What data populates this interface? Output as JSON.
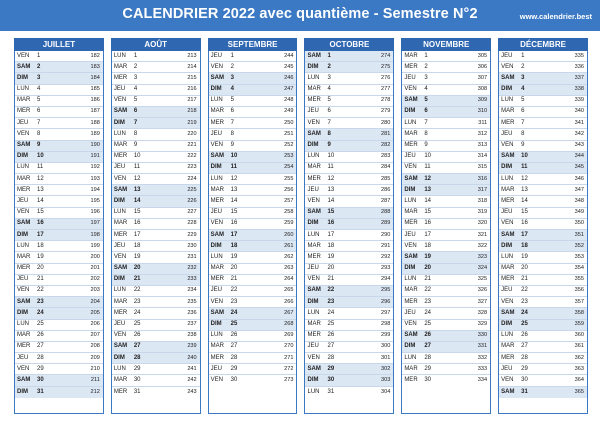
{
  "header": {
    "title": "CALENDRIER 2022 avec quantième - Semestre N°2",
    "site": "www.calendrier.best"
  },
  "months": [
    {
      "name": "JUILLET",
      "days": [
        {
          "d": "VEN",
          "n": "1",
          "q": "182"
        },
        {
          "d": "SAM",
          "n": "2",
          "q": "183"
        },
        {
          "d": "DIM",
          "n": "3",
          "q": "184"
        },
        {
          "d": "LUN",
          "n": "4",
          "q": "185"
        },
        {
          "d": "MAR",
          "n": "5",
          "q": "186"
        },
        {
          "d": "MER",
          "n": "6",
          "q": "187"
        },
        {
          "d": "JEU",
          "n": "7",
          "q": "188"
        },
        {
          "d": "VEN",
          "n": "8",
          "q": "189"
        },
        {
          "d": "SAM",
          "n": "9",
          "q": "190"
        },
        {
          "d": "DIM",
          "n": "10",
          "q": "191"
        },
        {
          "d": "LUN",
          "n": "11",
          "q": "192"
        },
        {
          "d": "MAR",
          "n": "12",
          "q": "193"
        },
        {
          "d": "MER",
          "n": "13",
          "q": "194"
        },
        {
          "d": "JEU",
          "n": "14",
          "q": "195"
        },
        {
          "d": "VEN",
          "n": "15",
          "q": "196"
        },
        {
          "d": "SAM",
          "n": "16",
          "q": "197"
        },
        {
          "d": "DIM",
          "n": "17",
          "q": "198"
        },
        {
          "d": "LUN",
          "n": "18",
          "q": "199"
        },
        {
          "d": "MAR",
          "n": "19",
          "q": "200"
        },
        {
          "d": "MER",
          "n": "20",
          "q": "201"
        },
        {
          "d": "JEU",
          "n": "21",
          "q": "202"
        },
        {
          "d": "VEN",
          "n": "22",
          "q": "203"
        },
        {
          "d": "SAM",
          "n": "23",
          "q": "204"
        },
        {
          "d": "DIM",
          "n": "24",
          "q": "205"
        },
        {
          "d": "LUN",
          "n": "25",
          "q": "206"
        },
        {
          "d": "MAR",
          "n": "26",
          "q": "207"
        },
        {
          "d": "MER",
          "n": "27",
          "q": "208"
        },
        {
          "d": "JEU",
          "n": "28",
          "q": "209"
        },
        {
          "d": "VEN",
          "n": "29",
          "q": "210"
        },
        {
          "d": "SAM",
          "n": "30",
          "q": "211"
        },
        {
          "d": "DIM",
          "n": "31",
          "q": "212"
        }
      ]
    },
    {
      "name": "AOÛT",
      "days": [
        {
          "d": "LUN",
          "n": "1",
          "q": "213"
        },
        {
          "d": "MAR",
          "n": "2",
          "q": "214"
        },
        {
          "d": "MER",
          "n": "3",
          "q": "215"
        },
        {
          "d": "JEU",
          "n": "4",
          "q": "216"
        },
        {
          "d": "VEN",
          "n": "5",
          "q": "217"
        },
        {
          "d": "SAM",
          "n": "6",
          "q": "218"
        },
        {
          "d": "DIM",
          "n": "7",
          "q": "219"
        },
        {
          "d": "LUN",
          "n": "8",
          "q": "220"
        },
        {
          "d": "MAR",
          "n": "9",
          "q": "221"
        },
        {
          "d": "MER",
          "n": "10",
          "q": "222"
        },
        {
          "d": "JEU",
          "n": "11",
          "q": "223"
        },
        {
          "d": "VEN",
          "n": "12",
          "q": "224"
        },
        {
          "d": "SAM",
          "n": "13",
          "q": "225"
        },
        {
          "d": "DIM",
          "n": "14",
          "q": "226"
        },
        {
          "d": "LUN",
          "n": "15",
          "q": "227"
        },
        {
          "d": "MAR",
          "n": "16",
          "q": "228"
        },
        {
          "d": "MER",
          "n": "17",
          "q": "229"
        },
        {
          "d": "JEU",
          "n": "18",
          "q": "230"
        },
        {
          "d": "VEN",
          "n": "19",
          "q": "231"
        },
        {
          "d": "SAM",
          "n": "20",
          "q": "232"
        },
        {
          "d": "DIM",
          "n": "21",
          "q": "233"
        },
        {
          "d": "LUN",
          "n": "22",
          "q": "234"
        },
        {
          "d": "MAR",
          "n": "23",
          "q": "235"
        },
        {
          "d": "MER",
          "n": "24",
          "q": "236"
        },
        {
          "d": "JEU",
          "n": "25",
          "q": "237"
        },
        {
          "d": "VEN",
          "n": "26",
          "q": "238"
        },
        {
          "d": "SAM",
          "n": "27",
          "q": "239"
        },
        {
          "d": "DIM",
          "n": "28",
          "q": "240"
        },
        {
          "d": "LUN",
          "n": "29",
          "q": "241"
        },
        {
          "d": "MAR",
          "n": "30",
          "q": "242"
        },
        {
          "d": "MER",
          "n": "31",
          "q": "243"
        }
      ]
    },
    {
      "name": "SEPTEMBRE",
      "days": [
        {
          "d": "JEU",
          "n": "1",
          "q": "244"
        },
        {
          "d": "VEN",
          "n": "2",
          "q": "245"
        },
        {
          "d": "SAM",
          "n": "3",
          "q": "246"
        },
        {
          "d": "DIM",
          "n": "4",
          "q": "247"
        },
        {
          "d": "LUN",
          "n": "5",
          "q": "248"
        },
        {
          "d": "MAR",
          "n": "6",
          "q": "249"
        },
        {
          "d": "MER",
          "n": "7",
          "q": "250"
        },
        {
          "d": "JEU",
          "n": "8",
          "q": "251"
        },
        {
          "d": "VEN",
          "n": "9",
          "q": "252"
        },
        {
          "d": "SAM",
          "n": "10",
          "q": "253"
        },
        {
          "d": "DIM",
          "n": "11",
          "q": "254"
        },
        {
          "d": "LUN",
          "n": "12",
          "q": "255"
        },
        {
          "d": "MAR",
          "n": "13",
          "q": "256"
        },
        {
          "d": "MER",
          "n": "14",
          "q": "257"
        },
        {
          "d": "JEU",
          "n": "15",
          "q": "258"
        },
        {
          "d": "VEN",
          "n": "16",
          "q": "259"
        },
        {
          "d": "SAM",
          "n": "17",
          "q": "260"
        },
        {
          "d": "DIM",
          "n": "18",
          "q": "261"
        },
        {
          "d": "LUN",
          "n": "19",
          "q": "262"
        },
        {
          "d": "MAR",
          "n": "20",
          "q": "263"
        },
        {
          "d": "MER",
          "n": "21",
          "q": "264"
        },
        {
          "d": "JEU",
          "n": "22",
          "q": "265"
        },
        {
          "d": "VEN",
          "n": "23",
          "q": "266"
        },
        {
          "d": "SAM",
          "n": "24",
          "q": "267"
        },
        {
          "d": "DIM",
          "n": "25",
          "q": "268"
        },
        {
          "d": "LUN",
          "n": "26",
          "q": "269"
        },
        {
          "d": "MAR",
          "n": "27",
          "q": "270"
        },
        {
          "d": "MER",
          "n": "28",
          "q": "271"
        },
        {
          "d": "JEU",
          "n": "29",
          "q": "272"
        },
        {
          "d": "VEN",
          "n": "30",
          "q": "273"
        }
      ]
    },
    {
      "name": "OCTOBRE",
      "days": [
        {
          "d": "SAM",
          "n": "1",
          "q": "274"
        },
        {
          "d": "DIM",
          "n": "2",
          "q": "275"
        },
        {
          "d": "LUN",
          "n": "3",
          "q": "276"
        },
        {
          "d": "MAR",
          "n": "4",
          "q": "277"
        },
        {
          "d": "MER",
          "n": "5",
          "q": "278"
        },
        {
          "d": "JEU",
          "n": "6",
          "q": "279"
        },
        {
          "d": "VEN",
          "n": "7",
          "q": "280"
        },
        {
          "d": "SAM",
          "n": "8",
          "q": "281"
        },
        {
          "d": "DIM",
          "n": "9",
          "q": "282"
        },
        {
          "d": "LUN",
          "n": "10",
          "q": "283"
        },
        {
          "d": "MAR",
          "n": "11",
          "q": "284"
        },
        {
          "d": "MER",
          "n": "12",
          "q": "285"
        },
        {
          "d": "JEU",
          "n": "13",
          "q": "286"
        },
        {
          "d": "VEN",
          "n": "14",
          "q": "287"
        },
        {
          "d": "SAM",
          "n": "15",
          "q": "288"
        },
        {
          "d": "DIM",
          "n": "16",
          "q": "289"
        },
        {
          "d": "LUN",
          "n": "17",
          "q": "290"
        },
        {
          "d": "MAR",
          "n": "18",
          "q": "291"
        },
        {
          "d": "MER",
          "n": "19",
          "q": "292"
        },
        {
          "d": "JEU",
          "n": "20",
          "q": "293"
        },
        {
          "d": "VEN",
          "n": "21",
          "q": "294"
        },
        {
          "d": "SAM",
          "n": "22",
          "q": "295"
        },
        {
          "d": "DIM",
          "n": "23",
          "q": "296"
        },
        {
          "d": "LUN",
          "n": "24",
          "q": "297"
        },
        {
          "d": "MAR",
          "n": "25",
          "q": "298"
        },
        {
          "d": "MER",
          "n": "26",
          "q": "299"
        },
        {
          "d": "JEU",
          "n": "27",
          "q": "300"
        },
        {
          "d": "VEN",
          "n": "28",
          "q": "301"
        },
        {
          "d": "SAM",
          "n": "29",
          "q": "302"
        },
        {
          "d": "DIM",
          "n": "30",
          "q": "303"
        },
        {
          "d": "LUN",
          "n": "31",
          "q": "304"
        }
      ]
    },
    {
      "name": "NOVEMBRE",
      "days": [
        {
          "d": "MAR",
          "n": "1",
          "q": "305"
        },
        {
          "d": "MER",
          "n": "2",
          "q": "306"
        },
        {
          "d": "JEU",
          "n": "3",
          "q": "307"
        },
        {
          "d": "VEN",
          "n": "4",
          "q": "308"
        },
        {
          "d": "SAM",
          "n": "5",
          "q": "309"
        },
        {
          "d": "DIM",
          "n": "6",
          "q": "310"
        },
        {
          "d": "LUN",
          "n": "7",
          "q": "311"
        },
        {
          "d": "MAR",
          "n": "8",
          "q": "312"
        },
        {
          "d": "MER",
          "n": "9",
          "q": "313"
        },
        {
          "d": "JEU",
          "n": "10",
          "q": "314"
        },
        {
          "d": "VEN",
          "n": "11",
          "q": "315"
        },
        {
          "d": "SAM",
          "n": "12",
          "q": "316"
        },
        {
          "d": "DIM",
          "n": "13",
          "q": "317"
        },
        {
          "d": "LUN",
          "n": "14",
          "q": "318"
        },
        {
          "d": "MAR",
          "n": "15",
          "q": "319"
        },
        {
          "d": "MER",
          "n": "16",
          "q": "320"
        },
        {
          "d": "JEU",
          "n": "17",
          "q": "321"
        },
        {
          "d": "VEN",
          "n": "18",
          "q": "322"
        },
        {
          "d": "SAM",
          "n": "19",
          "q": "323"
        },
        {
          "d": "DIM",
          "n": "20",
          "q": "324"
        },
        {
          "d": "LUN",
          "n": "21",
          "q": "325"
        },
        {
          "d": "MAR",
          "n": "22",
          "q": "326"
        },
        {
          "d": "MER",
          "n": "23",
          "q": "327"
        },
        {
          "d": "JEU",
          "n": "24",
          "q": "328"
        },
        {
          "d": "VEN",
          "n": "25",
          "q": "329"
        },
        {
          "d": "SAM",
          "n": "26",
          "q": "330"
        },
        {
          "d": "DIM",
          "n": "27",
          "q": "331"
        },
        {
          "d": "LUN",
          "n": "28",
          "q": "332"
        },
        {
          "d": "MAR",
          "n": "29",
          "q": "333"
        },
        {
          "d": "MER",
          "n": "30",
          "q": "334"
        }
      ]
    },
    {
      "name": "DÉCEMBRE",
      "days": [
        {
          "d": "JEU",
          "n": "1",
          "q": "335"
        },
        {
          "d": "VEN",
          "n": "2",
          "q": "336"
        },
        {
          "d": "SAM",
          "n": "3",
          "q": "337"
        },
        {
          "d": "DIM",
          "n": "4",
          "q": "338"
        },
        {
          "d": "LUN",
          "n": "5",
          "q": "339"
        },
        {
          "d": "MAR",
          "n": "6",
          "q": "340"
        },
        {
          "d": "MER",
          "n": "7",
          "q": "341"
        },
        {
          "d": "JEU",
          "n": "8",
          "q": "342"
        },
        {
          "d": "VEN",
          "n": "9",
          "q": "343"
        },
        {
          "d": "SAM",
          "n": "10",
          "q": "344"
        },
        {
          "d": "DIM",
          "n": "11",
          "q": "345"
        },
        {
          "d": "LUN",
          "n": "12",
          "q": "346"
        },
        {
          "d": "MAR",
          "n": "13",
          "q": "347"
        },
        {
          "d": "MER",
          "n": "14",
          "q": "348"
        },
        {
          "d": "JEU",
          "n": "15",
          "q": "349"
        },
        {
          "d": "VEN",
          "n": "16",
          "q": "350"
        },
        {
          "d": "SAM",
          "n": "17",
          "q": "351"
        },
        {
          "d": "DIM",
          "n": "18",
          "q": "352"
        },
        {
          "d": "LUN",
          "n": "19",
          "q": "353"
        },
        {
          "d": "MAR",
          "n": "20",
          "q": "354"
        },
        {
          "d": "MER",
          "n": "21",
          "q": "355"
        },
        {
          "d": "JEU",
          "n": "22",
          "q": "356"
        },
        {
          "d": "VEN",
          "n": "23",
          "q": "357"
        },
        {
          "d": "SAM",
          "n": "24",
          "q": "358"
        },
        {
          "d": "DIM",
          "n": "25",
          "q": "359"
        },
        {
          "d": "LUN",
          "n": "26",
          "q": "360"
        },
        {
          "d": "MAR",
          "n": "27",
          "q": "361"
        },
        {
          "d": "MER",
          "n": "28",
          "q": "362"
        },
        {
          "d": "JEU",
          "n": "29",
          "q": "363"
        },
        {
          "d": "VEN",
          "n": "30",
          "q": "364"
        },
        {
          "d": "SAM",
          "n": "31",
          "q": "365"
        }
      ]
    }
  ]
}
